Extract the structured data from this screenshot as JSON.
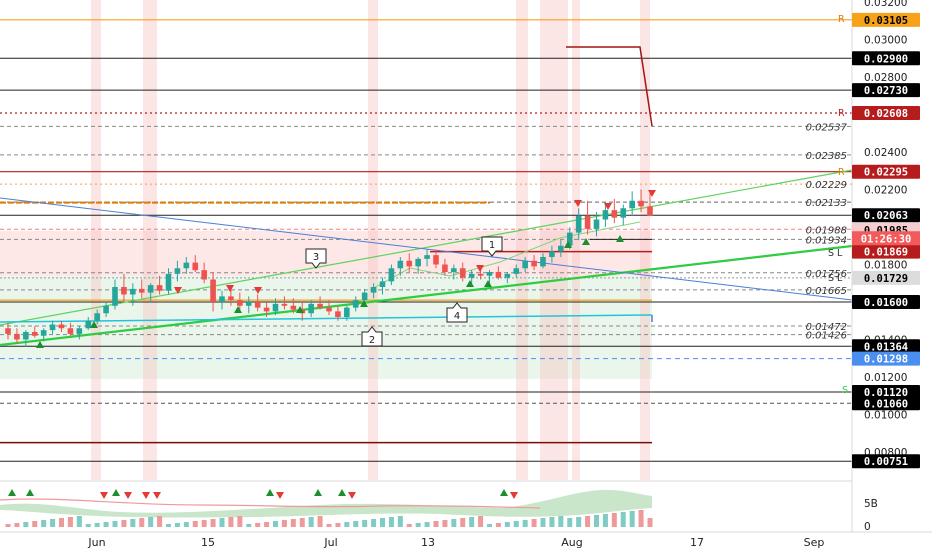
{
  "chart_data": {
    "type": "candlestick",
    "y_axis": {
      "range": [
        0.0069,
        0.0325
      ],
      "ticks": [
        "0.00800",
        "0.01000",
        "0.01200",
        "0.01400",
        "0.01600",
        "0.01800",
        "0.02000",
        "0.02200",
        "0.02400",
        "0.02600",
        "0.02800",
        "0.03000",
        "0.03200"
      ],
      "plain_labels": [
        "0.02537",
        "0.02385",
        "0.02229",
        "0.02133",
        "0.01988",
        "0.01934",
        "0.01756",
        "0.01665",
        "0.01472",
        "0.01426"
      ],
      "boxed_labels": [
        {
          "text": "0.03105",
          "value": 0.03105,
          "bg": "#f7a21b",
          "fg": "#000000"
        },
        {
          "text": "0.02900",
          "value": 0.029,
          "bg": "#000000",
          "fg": "#ffffff"
        },
        {
          "text": "0.02730",
          "value": 0.0273,
          "bg": "#000000",
          "fg": "#ffffff"
        },
        {
          "text": "0.02608",
          "value": 0.02608,
          "bg": "#b71c1c",
          "fg": "#ffffff"
        },
        {
          "text": "0.02295",
          "value": 0.02295,
          "bg": "#b71c1c",
          "fg": "#ffffff"
        },
        {
          "text": "0.02063",
          "value": 0.02063,
          "bg": "#000000",
          "fg": "#ffffff"
        },
        {
          "text": "0.01985",
          "value": 0.01985,
          "bg": "#f8cdd0",
          "fg": "#000000"
        },
        {
          "text": "0.01869",
          "value": 0.01869,
          "bg": "#b71c1c",
          "fg": "#ffffff"
        },
        {
          "text": "0.01729",
          "value": 0.01729,
          "bg": "#dcdcdc",
          "fg": "#000000"
        },
        {
          "text": "0.01600",
          "value": 0.016,
          "bg": "#000000",
          "fg": "#ffffff"
        },
        {
          "text": "0.01364",
          "value": 0.01364,
          "bg": "#000000",
          "fg": "#ffffff"
        },
        {
          "text": "0.01298",
          "value": 0.01298,
          "bg": "#4a8ff0",
          "fg": "#ffffff"
        },
        {
          "text": "0.01120",
          "value": 0.0112,
          "bg": "#000000",
          "fg": "#ffffff"
        },
        {
          "text": "0.01060",
          "value": 0.0106,
          "bg": "#000000",
          "fg": "#ffffff"
        },
        {
          "text": "0.00751",
          "value": 0.00751,
          "bg": "#000000",
          "fg": "#ffffff"
        }
      ],
      "countdown": {
        "text": "01:26:30",
        "bg": "#f25b5b",
        "fg": "#ffffff"
      }
    },
    "x_axis": {
      "ticks": [
        "Jun",
        "15",
        "Jul",
        "13",
        "Aug",
        "17",
        "Sep"
      ]
    },
    "volume_axis": {
      "ticks": [
        "5B",
        "0"
      ]
    },
    "annotations": [
      "1",
      "2",
      "3",
      "4"
    ],
    "markers": [
      "R",
      "R",
      "R",
      "S L",
      "S L",
      "S"
    ],
    "candles": [
      [
        0.0146,
        0.0149,
        0.014,
        0.0143
      ],
      [
        0.0143,
        0.0146,
        0.0138,
        0.014
      ],
      [
        0.014,
        0.0145,
        0.0136,
        0.0144
      ],
      [
        0.0144,
        0.0147,
        0.0141,
        0.0142
      ],
      [
        0.0142,
        0.0146,
        0.0139,
        0.0145
      ],
      [
        0.0145,
        0.015,
        0.0143,
        0.0148
      ],
      [
        0.0148,
        0.015,
        0.0144,
        0.0146
      ],
      [
        0.0146,
        0.0149,
        0.0142,
        0.0143
      ],
      [
        0.0143,
        0.0147,
        0.014,
        0.0146
      ],
      [
        0.0146,
        0.0152,
        0.0145,
        0.015
      ],
      [
        0.015,
        0.0156,
        0.0148,
        0.0154
      ],
      [
        0.0154,
        0.016,
        0.0152,
        0.0158
      ],
      [
        0.0158,
        0.0172,
        0.0156,
        0.0168
      ],
      [
        0.0168,
        0.0175,
        0.016,
        0.0164
      ],
      [
        0.0164,
        0.017,
        0.0158,
        0.0167
      ],
      [
        0.0167,
        0.0172,
        0.0162,
        0.0165
      ],
      [
        0.0165,
        0.017,
        0.016,
        0.0169
      ],
      [
        0.0169,
        0.0174,
        0.0164,
        0.0166
      ],
      [
        0.0166,
        0.0178,
        0.0164,
        0.0175
      ],
      [
        0.0175,
        0.0182,
        0.0171,
        0.0178
      ],
      [
        0.0178,
        0.0184,
        0.0175,
        0.0181
      ],
      [
        0.0181,
        0.0185,
        0.0176,
        0.0177
      ],
      [
        0.0177,
        0.0181,
        0.017,
        0.0172
      ],
      [
        0.0172,
        0.0176,
        0.0155,
        0.016
      ],
      [
        0.016,
        0.0166,
        0.0156,
        0.0163
      ],
      [
        0.0163,
        0.0168,
        0.0158,
        0.0161
      ],
      [
        0.0161,
        0.0165,
        0.0155,
        0.0158
      ],
      [
        0.0158,
        0.0163,
        0.0154,
        0.016
      ],
      [
        0.016,
        0.0164,
        0.0155,
        0.0157
      ],
      [
        0.0157,
        0.016,
        0.0152,
        0.0155
      ],
      [
        0.0155,
        0.0162,
        0.0153,
        0.0159
      ],
      [
        0.0159,
        0.0163,
        0.0156,
        0.0158
      ],
      [
        0.0158,
        0.0162,
        0.0154,
        0.0156
      ],
      [
        0.0156,
        0.016,
        0.015,
        0.0154
      ],
      [
        0.0154,
        0.0161,
        0.0152,
        0.0159
      ],
      [
        0.0159,
        0.0163,
        0.0156,
        0.0157
      ],
      [
        0.0157,
        0.0161,
        0.0153,
        0.0155
      ],
      [
        0.0155,
        0.0158,
        0.015,
        0.0152
      ],
      [
        0.0152,
        0.0158,
        0.015,
        0.0157
      ],
      [
        0.0157,
        0.0163,
        0.0155,
        0.0161
      ],
      [
        0.0161,
        0.0167,
        0.0159,
        0.0165
      ],
      [
        0.0165,
        0.017,
        0.0162,
        0.0168
      ],
      [
        0.0168,
        0.0173,
        0.0164,
        0.0171
      ],
      [
        0.0171,
        0.018,
        0.0169,
        0.0178
      ],
      [
        0.0178,
        0.0184,
        0.0174,
        0.0182
      ],
      [
        0.0182,
        0.0186,
        0.0176,
        0.0179
      ],
      [
        0.0179,
        0.0184,
        0.0175,
        0.0183
      ],
      [
        0.0183,
        0.0188,
        0.0179,
        0.0185
      ],
      [
        0.0185,
        0.0188,
        0.0178,
        0.018
      ],
      [
        0.018,
        0.0183,
        0.0174,
        0.0176
      ],
      [
        0.0176,
        0.018,
        0.0172,
        0.0178
      ],
      [
        0.0178,
        0.0181,
        0.0171,
        0.0173
      ],
      [
        0.0173,
        0.0177,
        0.017,
        0.0175
      ],
      [
        0.0175,
        0.0178,
        0.0172,
        0.0174
      ],
      [
        0.0174,
        0.0177,
        0.017,
        0.0176
      ],
      [
        0.0176,
        0.0179,
        0.0172,
        0.0173
      ],
      [
        0.0173,
        0.0176,
        0.017,
        0.0175
      ],
      [
        0.0175,
        0.018,
        0.0173,
        0.0178
      ],
      [
        0.0178,
        0.0184,
        0.0176,
        0.0182
      ],
      [
        0.0182,
        0.0185,
        0.0177,
        0.0179
      ],
      [
        0.0179,
        0.0186,
        0.0178,
        0.0184
      ],
      [
        0.0184,
        0.019,
        0.0181,
        0.0187
      ],
      [
        0.0187,
        0.0193,
        0.0184,
        0.019
      ],
      [
        0.019,
        0.02,
        0.0188,
        0.0197
      ],
      [
        0.0197,
        0.021,
        0.0193,
        0.0206
      ],
      [
        0.0206,
        0.0214,
        0.0196,
        0.0199
      ],
      [
        0.0199,
        0.0208,
        0.0195,
        0.0204
      ],
      [
        0.0204,
        0.0213,
        0.02,
        0.0209
      ],
      [
        0.0209,
        0.0215,
        0.0202,
        0.0205
      ],
      [
        0.0205,
        0.0212,
        0.0201,
        0.021
      ],
      [
        0.021,
        0.0219,
        0.0206,
        0.0214
      ],
      [
        0.0214,
        0.022,
        0.0208,
        0.0211
      ],
      [
        0.0211,
        0.0218,
        0.0207,
        0.0206
      ]
    ]
  }
}
